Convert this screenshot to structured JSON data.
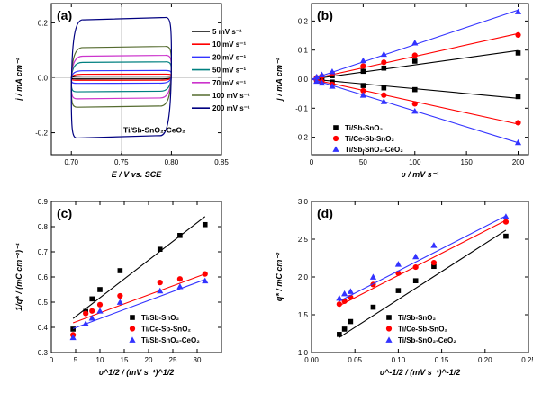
{
  "chart_data": [
    {
      "panel": "(a)",
      "type": "line",
      "xlabel": "E / V vs. SCE",
      "ylabel": "j / mA cm⁻²",
      "xlim": [
        0.68,
        0.85
      ],
      "ylim": [
        -0.28,
        0.27
      ],
      "xticks": [
        "0.70",
        "0.75",
        "0.80",
        "0.85"
      ],
      "yticks": [
        "-0.2",
        "0.0",
        "0.2"
      ],
      "xtick_values": [
        0.7,
        0.75,
        0.8,
        0.85
      ],
      "ytick_values": [
        -0.2,
        0.0,
        0.2
      ],
      "annotation": "Ti/Sb-SnO₂-CeO₂",
      "legend_position": "top-right",
      "x_range": [
        0.7,
        0.8
      ],
      "series": [
        {
          "name": "5 mV s⁻¹",
          "color": "#000000",
          "j_upper": 0.006,
          "j_lower": -0.004
        },
        {
          "name": "10 mV s⁻¹",
          "color": "#ff0000",
          "j_upper": 0.013,
          "j_lower": -0.009
        },
        {
          "name": "20 mV s⁻¹",
          "color": "#3333ff",
          "j_upper": 0.026,
          "j_lower": -0.02
        },
        {
          "name": "50 mV s⁻¹",
          "color": "#008080",
          "j_upper": 0.057,
          "j_lower": -0.05
        },
        {
          "name": "70 mV s⁻¹",
          "color": "#cc33cc",
          "j_upper": 0.08,
          "j_lower": -0.075
        },
        {
          "name": "100 mV s⁻¹",
          "color": "#556b2f",
          "j_upper": 0.112,
          "j_lower": -0.105
        },
        {
          "name": "200 mV s⁻¹",
          "color": "#000080",
          "j_upper": 0.215,
          "j_lower": -0.215
        }
      ]
    },
    {
      "panel": "(b)",
      "type": "scatter",
      "xlabel": "υ / mV s⁻¹",
      "ylabel": "j / mA cm⁻²",
      "xlim": [
        0,
        210
      ],
      "ylim": [
        -0.26,
        0.26
      ],
      "xticks": [
        "0",
        "50",
        "100",
        "150",
        "200"
      ],
      "yticks": [
        "-0.2",
        "-0.1",
        "0.0",
        "0.1",
        "0.2"
      ],
      "xtick_values": [
        0,
        50,
        100,
        150,
        200
      ],
      "ytick_values": [
        -0.2,
        -0.1,
        0.0,
        0.1,
        0.2
      ],
      "legend_position": "bottom-left",
      "x": [
        5,
        10,
        20,
        50,
        70,
        100,
        200
      ],
      "series": [
        {
          "name": "Ti/Sb-SnO₂",
          "color": "#000000",
          "marker": "square",
          "y_anodic": [
            0.003,
            0.006,
            0.012,
            0.027,
            0.038,
            0.062,
            0.09
          ],
          "y_cathodic": [
            -0.003,
            -0.006,
            -0.01,
            -0.022,
            -0.03,
            -0.036,
            -0.06
          ]
        },
        {
          "name": "Ti/Ce-Sb-SnO₂",
          "color": "#ff0000",
          "marker": "circle",
          "y_anodic": [
            0.005,
            0.01,
            0.02,
            0.045,
            0.058,
            0.082,
            0.152
          ],
          "y_cathodic": [
            -0.004,
            -0.009,
            -0.018,
            -0.04,
            -0.055,
            -0.085,
            -0.15
          ]
        },
        {
          "name": "Ti/Sb-SnO₂-CeO₂",
          "color": "#3333ff",
          "marker": "triangle",
          "y_anodic": [
            0.008,
            0.015,
            0.026,
            0.064,
            0.086,
            0.125,
            0.232
          ],
          "y_cathodic": [
            -0.007,
            -0.013,
            -0.024,
            -0.055,
            -0.077,
            -0.11,
            -0.218
          ]
        }
      ]
    },
    {
      "panel": "(c)",
      "type": "scatter",
      "xlabel": "υ^1/2 / (mV s⁻¹)^1/2",
      "ylabel": "1/q* / (mC cm⁻²)⁻¹",
      "xlim": [
        0,
        35
      ],
      "ylim": [
        0.3,
        0.9
      ],
      "xticks": [
        "0",
        "5",
        "10",
        "15",
        "20",
        "25",
        "30"
      ],
      "yticks": [
        "0.3",
        "0.4",
        "0.5",
        "0.6",
        "0.7",
        "0.8",
        "0.9"
      ],
      "xtick_values": [
        0,
        5,
        10,
        15,
        20,
        25,
        30
      ],
      "ytick_values": [
        0.3,
        0.4,
        0.5,
        0.6,
        0.7,
        0.8,
        0.9
      ],
      "legend_position": "bottom-right",
      "x": [
        4.47,
        7.07,
        8.37,
        10.0,
        14.14,
        22.36,
        26.46,
        31.62
      ],
      "series": [
        {
          "name": "Ti/Sb-SnO₂",
          "color": "#000000",
          "marker": "square",
          "values": [
            0.393,
            0.463,
            0.513,
            0.55,
            0.625,
            0.71,
            0.765,
            0.808
          ],
          "fit": [
            [
              4.47,
              0.435
            ],
            [
              31.62,
              0.84
            ]
          ]
        },
        {
          "name": "Ti/Ce-Sb-SnO₂",
          "color": "#ff0000",
          "marker": "circle",
          "values": [
            0.37,
            0.455,
            0.465,
            0.49,
            0.525,
            0.578,
            0.592,
            0.612
          ],
          "fit": [
            [
              4.47,
              0.418
            ],
            [
              31.62,
              0.612
            ]
          ]
        },
        {
          "name": "Ti/Sb-SnO₂-CeO₂",
          "color": "#3333ff",
          "marker": "triangle",
          "values": [
            0.36,
            0.415,
            0.437,
            0.465,
            0.5,
            0.545,
            0.562,
            0.585
          ],
          "fit": [
            [
              4.47,
              0.395
            ],
            [
              31.62,
              0.59
            ]
          ]
        }
      ]
    },
    {
      "panel": "(d)",
      "type": "scatter",
      "xlabel": "υ^-1/2 / (mV s⁻¹)^-1/2",
      "ylabel": "q* / mC cm⁻²",
      "xlim": [
        0.0,
        0.25
      ],
      "ylim": [
        1.0,
        3.0
      ],
      "xticks": [
        "0.00",
        "0.05",
        "0.10",
        "0.15",
        "0.20",
        "0.25"
      ],
      "yticks": [
        "1.0",
        "1.5",
        "2.0",
        "2.5",
        "3.0"
      ],
      "xtick_values": [
        0.0,
        0.05,
        0.1,
        0.15,
        0.2,
        0.25
      ],
      "ytick_values": [
        1.0,
        1.5,
        2.0,
        2.5,
        3.0
      ],
      "legend_position": "bottom-right",
      "x": [
        0.032,
        0.038,
        0.045,
        0.071,
        0.1,
        0.12,
        0.141,
        0.224
      ],
      "series": [
        {
          "name": "Ti/Sb-SnO₂",
          "color": "#000000",
          "marker": "square",
          "values": [
            1.24,
            1.31,
            1.41,
            1.6,
            1.82,
            1.95,
            2.14,
            2.54
          ],
          "fit": [
            [
              0.032,
              1.2
            ],
            [
              0.224,
              2.62
            ]
          ]
        },
        {
          "name": "Ti/Ce-Sb-SnO₂",
          "color": "#ff0000",
          "marker": "circle",
          "values": [
            1.64,
            1.68,
            1.73,
            1.9,
            2.05,
            2.13,
            2.19,
            2.73
          ],
          "fit": [
            [
              0.032,
              1.62
            ],
            [
              0.224,
              2.75
            ]
          ]
        },
        {
          "name": "Ti/Sb-SnO₂-CeO₂",
          "color": "#3333ff",
          "marker": "triangle",
          "values": [
            1.72,
            1.78,
            1.81,
            2.0,
            2.17,
            2.27,
            2.42,
            2.8
          ],
          "fit": [
            [
              0.032,
              1.68
            ],
            [
              0.224,
              2.81
            ]
          ]
        }
      ]
    }
  ]
}
